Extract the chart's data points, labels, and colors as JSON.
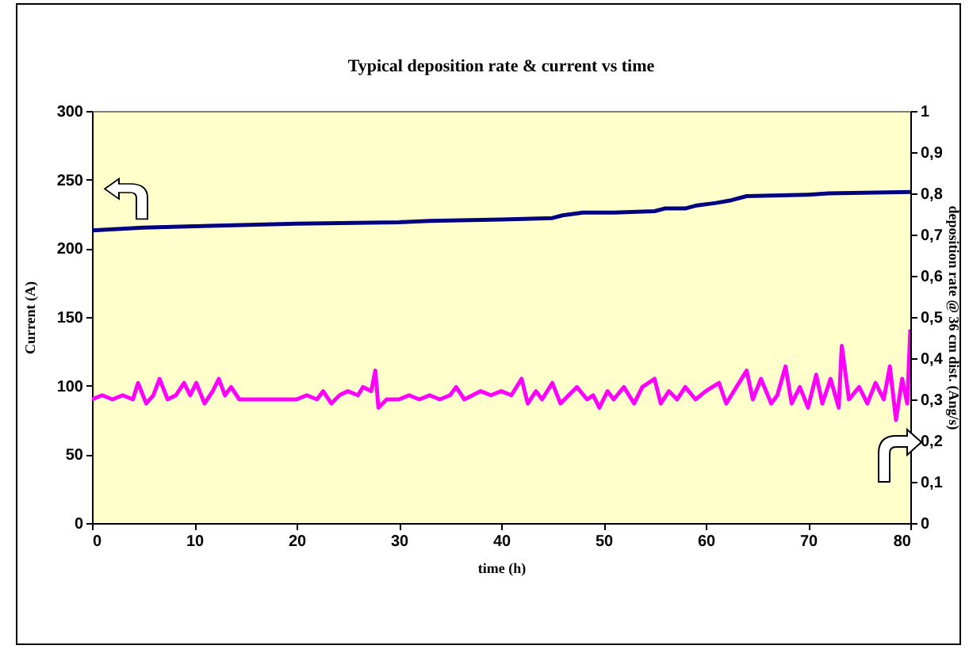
{
  "chart_data": {
    "type": "line",
    "title": "Typical deposition rate & current vs time",
    "xlabel": "time (h)",
    "ylabel": "Current (A)",
    "y2label": "deposition rate @ 36 cm dist. (Ang/s)",
    "xlim": [
      0,
      80
    ],
    "xticks": [
      0,
      10,
      20,
      30,
      40,
      50,
      60,
      70,
      80
    ],
    "ylim": [
      0,
      300
    ],
    "yticks": [
      0,
      50,
      100,
      150,
      200,
      250,
      300
    ],
    "y2lim": [
      0,
      1
    ],
    "y2ticks": [
      {
        "value": 0,
        "label": "0"
      },
      {
        "value": 0.1,
        "label": "0,1"
      },
      {
        "value": 0.2,
        "label": "0,2"
      },
      {
        "value": 0.3,
        "label": "0,3"
      },
      {
        "value": 0.4,
        "label": "0,4"
      },
      {
        "value": 0.5,
        "label": "0,5"
      },
      {
        "value": 0.6,
        "label": "0,6"
      },
      {
        "value": 0.7,
        "label": "0,7"
      },
      {
        "value": 0.8,
        "label": "0,8"
      },
      {
        "value": 0.9,
        "label": "0,9"
      },
      {
        "value": 1,
        "label": "1"
      }
    ],
    "grid": false,
    "series": [
      {
        "color": "#000080",
        "x": [
          0,
          5,
          10,
          20,
          30,
          33,
          40,
          45,
          46,
          47,
          48,
          50,
          51,
          55,
          56,
          58,
          59,
          61,
          62.5,
          64,
          70,
          72,
          80
        ],
        "values": [
          213,
          215,
          216,
          218,
          219,
          220,
          221,
          222,
          224,
          225,
          226,
          226,
          226,
          227,
          229,
          229,
          231,
          233,
          235,
          238,
          239,
          240,
          241
        ]
      },
      {
        "color": "#ff00ff",
        "axis": "y2",
        "x": [
          0,
          1,
          2,
          3,
          4,
          4.5,
          5.3,
          6,
          6.6,
          7.4,
          8.2,
          9,
          9.6,
          10.2,
          11,
          11.8,
          12.4,
          13,
          13.6,
          14.4,
          15.5,
          17,
          18.5,
          20,
          21,
          22,
          22.6,
          23.4,
          24.2,
          25,
          26,
          26.5,
          27.3,
          27.7,
          28,
          28.8,
          30,
          31,
          32,
          33,
          34,
          35,
          35.6,
          36.4,
          37.2,
          38,
          39,
          40,
          41,
          42,
          42.6,
          43.4,
          44,
          45,
          45.8,
          46.6,
          47.4,
          48.4,
          49,
          49.6,
          50.4,
          51,
          52,
          53,
          53.8,
          55,
          55.6,
          56.4,
          57.2,
          58,
          59,
          60,
          61.3,
          62,
          63,
          64,
          64.6,
          65.4,
          66.4,
          67,
          67.8,
          68.4,
          69.2,
          70,
          70.8,
          71.4,
          72.2,
          73,
          73.3,
          74,
          75,
          75.8,
          76.6,
          77.4,
          78,
          78.6,
          79.2,
          79.7,
          80
        ],
        "values": [
          0.3,
          0.31,
          0.3,
          0.31,
          0.3,
          0.34,
          0.29,
          0.31,
          0.35,
          0.3,
          0.31,
          0.34,
          0.31,
          0.34,
          0.29,
          0.32,
          0.35,
          0.31,
          0.33,
          0.3,
          0.3,
          0.3,
          0.3,
          0.3,
          0.31,
          0.3,
          0.32,
          0.29,
          0.31,
          0.32,
          0.31,
          0.33,
          0.32,
          0.37,
          0.28,
          0.3,
          0.3,
          0.31,
          0.3,
          0.31,
          0.3,
          0.31,
          0.33,
          0.3,
          0.31,
          0.32,
          0.31,
          0.32,
          0.31,
          0.35,
          0.29,
          0.32,
          0.3,
          0.34,
          0.29,
          0.31,
          0.33,
          0.3,
          0.31,
          0.28,
          0.32,
          0.3,
          0.33,
          0.29,
          0.33,
          0.35,
          0.29,
          0.32,
          0.3,
          0.33,
          0.3,
          0.32,
          0.34,
          0.29,
          0.33,
          0.37,
          0.3,
          0.35,
          0.29,
          0.31,
          0.38,
          0.29,
          0.33,
          0.28,
          0.36,
          0.29,
          0.35,
          0.28,
          0.43,
          0.3,
          0.33,
          0.29,
          0.34,
          0.3,
          0.38,
          0.25,
          0.35,
          0.29,
          0.47
        ]
      }
    ]
  }
}
